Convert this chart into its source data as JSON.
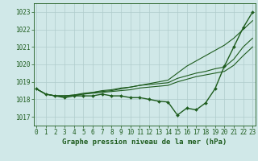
{
  "title": "Graphe pression niveau de la mer (hPa)",
  "x": [
    0,
    1,
    2,
    3,
    4,
    5,
    6,
    7,
    8,
    9,
    10,
    11,
    12,
    13,
    14,
    15,
    16,
    17,
    18,
    19,
    20,
    21,
    22,
    23
  ],
  "series": [
    {
      "name": "main_with_markers",
      "values": [
        1018.6,
        1018.3,
        1018.2,
        1018.1,
        1018.2,
        1018.2,
        1018.2,
        1018.3,
        1018.2,
        1018.2,
        1018.1,
        1018.1,
        1018.0,
        1017.9,
        1017.85,
        1017.1,
        1017.5,
        1017.4,
        1017.8,
        1018.6,
        1019.9,
        1021.0,
        1022.1,
        1023.0
      ],
      "color": "#1e5c1e",
      "linewidth": 1.0,
      "marker": "D",
      "markersize": 2.0
    },
    {
      "name": "upper_line1",
      "values": [
        1018.6,
        1018.3,
        1018.2,
        1018.2,
        1018.2,
        1018.3,
        1018.4,
        1018.45,
        1018.5,
        1018.6,
        1018.7,
        1018.8,
        1018.9,
        1019.0,
        1019.1,
        1019.5,
        1019.9,
        1020.2,
        1020.5,
        1020.8,
        1021.1,
        1021.5,
        1022.0,
        1022.5
      ],
      "color": "#1e5c1e",
      "linewidth": 0.8,
      "marker": null,
      "markersize": 0
    },
    {
      "name": "upper_line2",
      "values": [
        1018.6,
        1018.3,
        1018.2,
        1018.2,
        1018.25,
        1018.35,
        1018.4,
        1018.5,
        1018.55,
        1018.65,
        1018.7,
        1018.8,
        1018.85,
        1018.9,
        1018.95,
        1019.2,
        1019.35,
        1019.5,
        1019.6,
        1019.75,
        1019.85,
        1020.3,
        1021.0,
        1021.5
      ],
      "color": "#1e5c1e",
      "linewidth": 0.8,
      "marker": null,
      "markersize": 0
    },
    {
      "name": "upper_line3",
      "values": [
        1018.6,
        1018.3,
        1018.2,
        1018.2,
        1018.25,
        1018.3,
        1018.35,
        1018.4,
        1018.45,
        1018.5,
        1018.55,
        1018.65,
        1018.7,
        1018.75,
        1018.8,
        1019.0,
        1019.15,
        1019.3,
        1019.4,
        1019.5,
        1019.6,
        1019.95,
        1020.5,
        1021.0
      ],
      "color": "#1e5c1e",
      "linewidth": 0.8,
      "marker": null,
      "markersize": 0
    }
  ],
  "ylim": [
    1016.5,
    1023.5
  ],
  "yticks": [
    1017,
    1018,
    1019,
    1020,
    1021,
    1022,
    1023
  ],
  "xlim": [
    -0.3,
    23.3
  ],
  "background_color": "#d0e8e8",
  "grid_color": "#b0cccc",
  "axis_color": "#1e5c1e",
  "tick_label_color": "#1e5c1e",
  "title_color": "#1e5c1e",
  "title_fontsize": 6.5,
  "tick_fontsize": 5.5
}
